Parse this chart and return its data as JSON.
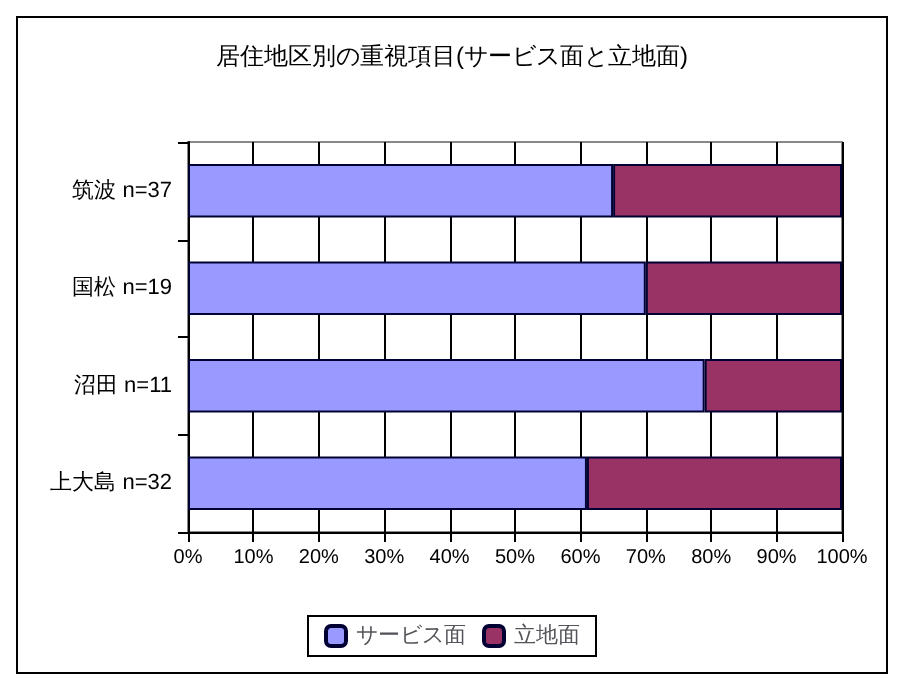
{
  "chart_data": {
    "type": "bar",
    "title": "居住地区別の重視項目(サービス面と立地面)",
    "orientation": "horizontal",
    "stacked": true,
    "categories": [
      "筑波 n=37",
      "国松 n=19",
      "沼田 n=11",
      "上大島 n=32"
    ],
    "series": [
      {
        "name": "サービス面",
        "color": "#9999ff",
        "values": [
          65,
          70,
          79,
          61
        ]
      },
      {
        "name": "立地面",
        "color": "#993366",
        "values": [
          35,
          30,
          21,
          39
        ]
      }
    ],
    "xlim": [
      0,
      100
    ],
    "xticks": [
      {
        "value": 0,
        "label": "0%"
      },
      {
        "value": 10,
        "label": "10%"
      },
      {
        "value": 20,
        "label": "20%"
      },
      {
        "value": 30,
        "label": "30%"
      },
      {
        "value": 40,
        "label": "40%"
      },
      {
        "value": 50,
        "label": "50%"
      },
      {
        "value": 60,
        "label": "60%"
      },
      {
        "value": 70,
        "label": "70%"
      },
      {
        "value": 80,
        "label": "80%"
      },
      {
        "value": 90,
        "label": "90%"
      },
      {
        "value": 100,
        "label": "100%"
      }
    ],
    "grid": "x",
    "legend": "bottom"
  }
}
